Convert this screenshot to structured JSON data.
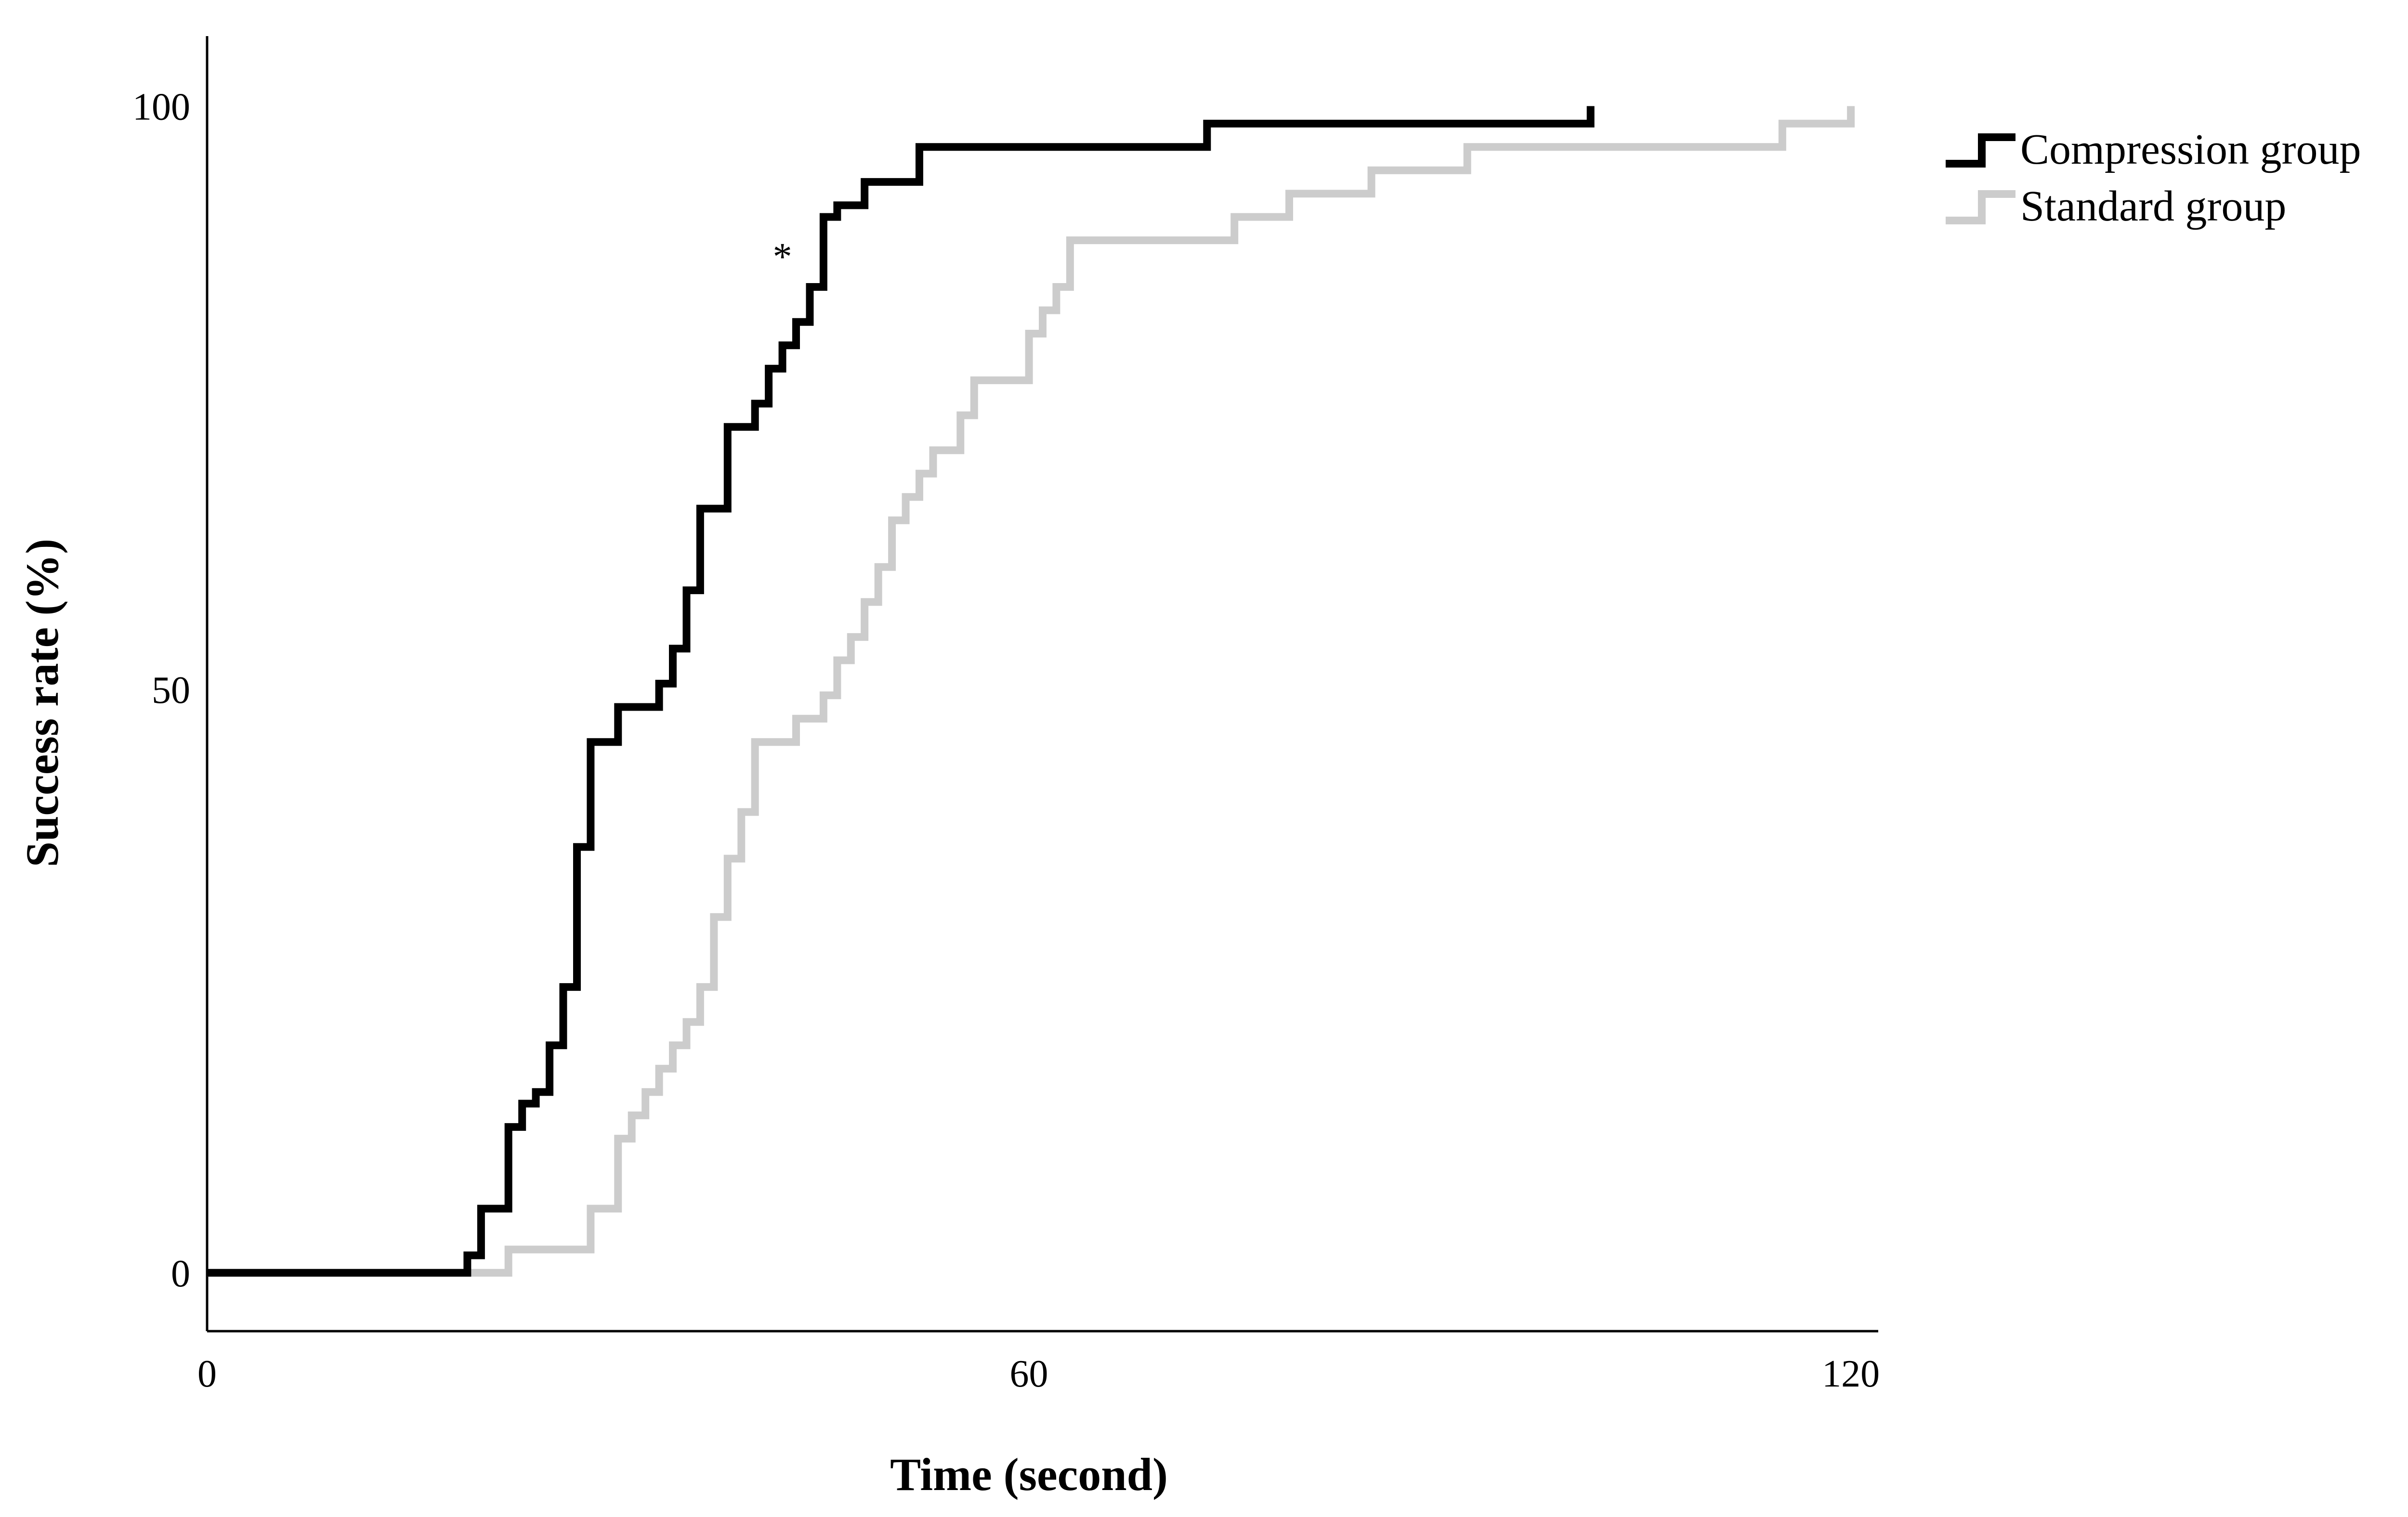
{
  "chart_data": {
    "type": "line",
    "xlabel": "Time (second)",
    "ylabel": "Success rate (%)",
    "xlim": [
      0,
      122
    ],
    "ylim": [
      -5,
      106
    ],
    "x_ticks": [
      0,
      60,
      120
    ],
    "y_ticks": [
      0,
      50,
      100
    ],
    "x_tick_labels": [
      "0",
      "60",
      "120"
    ],
    "y_tick_labels": [
      "0",
      "50",
      "100"
    ],
    "grid": false,
    "legend_position": "top-right, outside plot",
    "annotation": {
      "text": "*",
      "x": 42,
      "y": 86
    },
    "series": [
      {
        "name": "Compression group",
        "color": "#000000",
        "step": true,
        "points": [
          [
            0,
            0
          ],
          [
            19,
            0
          ],
          [
            19,
            1.5
          ],
          [
            20,
            1.5
          ],
          [
            20,
            5.5
          ],
          [
            22,
            5.5
          ],
          [
            22,
            12.5
          ],
          [
            23,
            12.5
          ],
          [
            23,
            14.5
          ],
          [
            24,
            14.5
          ],
          [
            24,
            15.5
          ],
          [
            25,
            15.5
          ],
          [
            25,
            19.5
          ],
          [
            26,
            19.5
          ],
          [
            26,
            24.5
          ],
          [
            27,
            24.5
          ],
          [
            27,
            36.5
          ],
          [
            28,
            36.5
          ],
          [
            28,
            45.5
          ],
          [
            30,
            45.5
          ],
          [
            30,
            48.5
          ],
          [
            33,
            48.5
          ],
          [
            33,
            50.5
          ],
          [
            34,
            50.5
          ],
          [
            34,
            53.5
          ],
          [
            35,
            53.5
          ],
          [
            35,
            58.5
          ],
          [
            36,
            58.5
          ],
          [
            36,
            65.5
          ],
          [
            38,
            65.5
          ],
          [
            38,
            72.5
          ],
          [
            40,
            72.5
          ],
          [
            40,
            74.5
          ],
          [
            41,
            74.5
          ],
          [
            41,
            77.5
          ],
          [
            42,
            77.5
          ],
          [
            42,
            79.5
          ],
          [
            43,
            79.5
          ],
          [
            43,
            81.5
          ],
          [
            44,
            81.5
          ],
          [
            44,
            84.5
          ],
          [
            45,
            84.5
          ],
          [
            45,
            90.5
          ],
          [
            46,
            90.5
          ],
          [
            46,
            91.5
          ],
          [
            48,
            91.5
          ],
          [
            48,
            93.5
          ],
          [
            52,
            93.5
          ],
          [
            52,
            96.5
          ],
          [
            73,
            96.5
          ],
          [
            73,
            98.5
          ],
          [
            101,
            98.5
          ],
          [
            101,
            100
          ]
        ]
      },
      {
        "name": "Standard group",
        "color": "#cccccc",
        "step": true,
        "points": [
          [
            0,
            0
          ],
          [
            22,
            0
          ],
          [
            22,
            2
          ],
          [
            28,
            2
          ],
          [
            28,
            5.5
          ],
          [
            30,
            5.5
          ],
          [
            30,
            11.5
          ],
          [
            31,
            11.5
          ],
          [
            31,
            13.5
          ],
          [
            32,
            13.5
          ],
          [
            32,
            15.5
          ],
          [
            33,
            15.5
          ],
          [
            33,
            17.5
          ],
          [
            34,
            17.5
          ],
          [
            34,
            19.5
          ],
          [
            35,
            19.5
          ],
          [
            35,
            21.5
          ],
          [
            36,
            21.5
          ],
          [
            36,
            24.5
          ],
          [
            37,
            24.5
          ],
          [
            37,
            30.5
          ],
          [
            38,
            30.5
          ],
          [
            38,
            35.5
          ],
          [
            39,
            35.5
          ],
          [
            39,
            39.5
          ],
          [
            40,
            39.5
          ],
          [
            40,
            45.5
          ],
          [
            43,
            45.5
          ],
          [
            43,
            47.5
          ],
          [
            45,
            47.5
          ],
          [
            45,
            49.5
          ],
          [
            46,
            49.5
          ],
          [
            46,
            52.5
          ],
          [
            47,
            52.5
          ],
          [
            47,
            54.5
          ],
          [
            48,
            54.5
          ],
          [
            48,
            57.5
          ],
          [
            49,
            57.5
          ],
          [
            49,
            60.5
          ],
          [
            50,
            60.5
          ],
          [
            50,
            64.5
          ],
          [
            51,
            64.5
          ],
          [
            51,
            66.5
          ],
          [
            52,
            66.5
          ],
          [
            52,
            68.5
          ],
          [
            53,
            68.5
          ],
          [
            53,
            70.5
          ],
          [
            55,
            70.5
          ],
          [
            55,
            73.5
          ],
          [
            56,
            73.5
          ],
          [
            56,
            76.5
          ],
          [
            60,
            76.5
          ],
          [
            60,
            80.5
          ],
          [
            61,
            80.5
          ],
          [
            61,
            82.5
          ],
          [
            62,
            82.5
          ],
          [
            62,
            84.5
          ],
          [
            63,
            84.5
          ],
          [
            63,
            88.5
          ],
          [
            75,
            88.5
          ],
          [
            75,
            90.5
          ],
          [
            79,
            90.5
          ],
          [
            79,
            92.5
          ],
          [
            85,
            92.5
          ],
          [
            85,
            94.5
          ],
          [
            92,
            94.5
          ],
          [
            92,
            96.5
          ],
          [
            115,
            96.5
          ],
          [
            115,
            98.5
          ],
          [
            120,
            98.5
          ],
          [
            120,
            100
          ]
        ]
      }
    ]
  }
}
